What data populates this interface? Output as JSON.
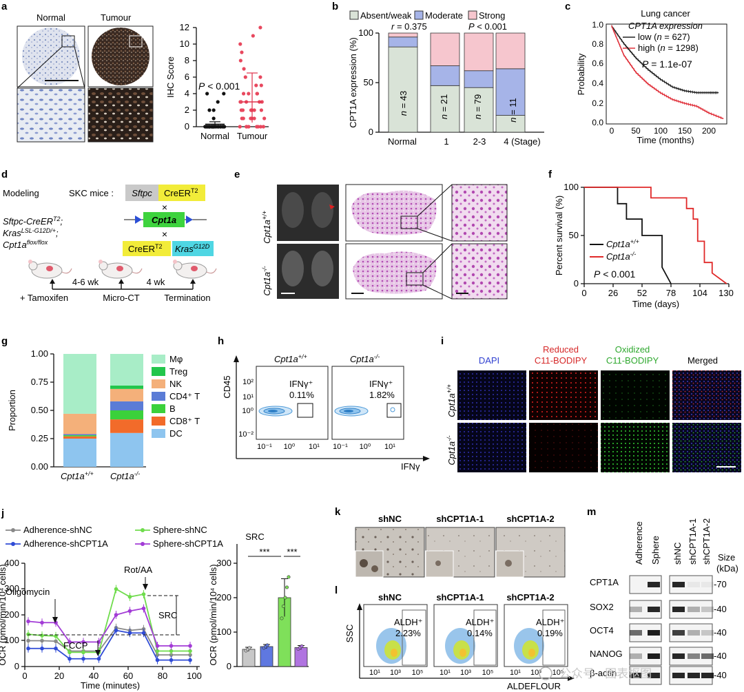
{
  "panels": {
    "a": {
      "letter": "a",
      "img_normal": "Normal",
      "img_tumour": "Tumour",
      "ylabel": "IHC Score",
      "p": "P < 0.001",
      "cats": [
        "Normal",
        "Tumour"
      ],
      "yticks": [
        "0",
        "2",
        "4",
        "6",
        "8",
        "10",
        "12"
      ]
    },
    "b": {
      "letter": "b",
      "legend": [
        "Absent/weak",
        "Moderate",
        "Strong"
      ],
      "ylabel": "CPT1A expression (%)",
      "r": "r = 0.375",
      "p": "P < 0.001",
      "cats": [
        "Normal",
        "1",
        "2-3",
        "4 (Stage)"
      ],
      "n": [
        "n = 43",
        "n = 21",
        "n = 79",
        "n = 11"
      ],
      "yticks": [
        "0",
        "50",
        "100"
      ]
    },
    "c": {
      "letter": "c",
      "title": "Lung cancer",
      "subtitle": "CPT1A expression",
      "low": "low (n = 627)",
      "high": "high (n = 1298)",
      "p": "P = 1.1e-07",
      "ylabel": "Probability",
      "xlabel": "Time (months)",
      "yticks": [
        "0.0",
        "0.2",
        "0.4",
        "0.6",
        "0.8",
        "1.0"
      ],
      "xticks": [
        "0",
        "50",
        "100",
        "150",
        "200"
      ]
    },
    "d": {
      "letter": "d",
      "modeling": "Modeling",
      "skc": "SKC mice :",
      "sftpc": "Sftpc",
      "creer": "CreER",
      "t2": "T2",
      "cpt1a": "Cpt1a",
      "kras": "Kras",
      "g12d": "G12D",
      "geno1": "Sftpc-CreER",
      "geno1sup": "T2",
      "geno2": "Kras",
      "geno2sup": "LSL-G12D/+",
      "geno3": "Cpt1a",
      "geno3sup": "flox/flox",
      "wk1": "4-6 wk",
      "wk2": "4 wk",
      "step1": "+ Tamoxifen",
      "step2": "Micro-CT",
      "step3": "Termination"
    },
    "e": {
      "letter": "e",
      "row1": "Cpt1a",
      "row1sup": "+/+",
      "row2": "Cpt1a",
      "row2sup": "-/-"
    },
    "f": {
      "letter": "f",
      "ylabel": "Percent survival (%)",
      "xlabel": "Time (days)",
      "wt": "Cpt1a",
      "wtsup": "+/+",
      "ko": "Cpt1a",
      "kosup": "-/-",
      "p": "P < 0.001",
      "yticks": [
        "0",
        "50",
        "100"
      ],
      "xticks": [
        "0",
        "26",
        "52",
        "78",
        "104",
        "130"
      ]
    },
    "g": {
      "letter": "g",
      "ylabel": "Proportion",
      "cats": [
        "Cpt1a",
        "Cpt1a"
      ],
      "catsup": [
        "+/+",
        "-/-"
      ],
      "yticks": [
        "0.00",
        "0.25",
        "0.50",
        "0.75",
        "1.00"
      ],
      "legend": [
        "Mφ",
        "Treg",
        "NK",
        "CD4⁺ T",
        "B",
        "CD8⁺ T",
        "DC"
      ]
    },
    "h": {
      "letter": "h",
      "ylabel": "CD45",
      "xlabel": "IFNγ",
      "wt": "Cpt1a",
      "wtsup": "+/+",
      "ko": "Cpt1a",
      "kosup": "-/-",
      "gate": "IFNγ⁺",
      "v1": "0.11%",
      "v2": "1.82%",
      "yticks": [
        "10²",
        "10¹",
        "10⁰",
        "10⁻²"
      ],
      "xticks": [
        "10⁻¹",
        "10⁰",
        "10¹"
      ]
    },
    "i": {
      "letter": "i",
      "cols": [
        "DAPI",
        "Reduced",
        "Oxidized",
        "Merged"
      ],
      "cols2": [
        "",
        "C11-BODIPY",
        "C11-BODIPY",
        ""
      ],
      "row1": "Cpt1a",
      "row1sup": "+/+",
      "row2": "Cpt1a",
      "row2sup": "-/-"
    },
    "j": {
      "letter": "j",
      "legend": [
        "Adherence-shNC",
        "Sphere-shNC",
        "Adherence-shCPT1A",
        "Sphere-shCPT1A"
      ],
      "ylabel": "OCR (pmol/min/10⁴ cells)",
      "xlabel": "Time (minutes)",
      "oligo": "Oligomycin",
      "fccp": "FCCP",
      "rot": "Rot/AA",
      "src": "SRC",
      "bar_title": "SRC",
      "bar_ylabel": "OCR (pmol/min/10⁴ cells)",
      "stars": "***",
      "yticks": [
        "0",
        "100",
        "200",
        "300",
        "400"
      ],
      "xticks": [
        "0",
        "20",
        "40",
        "60",
        "80",
        "100"
      ],
      "bar_yticks": [
        "0",
        "100",
        "200",
        "300"
      ]
    },
    "k": {
      "letter": "k",
      "cols": [
        "shNC",
        "shCPT1A-1",
        "shCPT1A-2"
      ]
    },
    "l": {
      "letter": "l",
      "cols": [
        "shNC",
        "shCPT1A-1",
        "shCPT1A-2"
      ],
      "gate": "ALDH⁺",
      "vals": [
        "2.23%",
        "0.14%",
        "0.19%"
      ],
      "ylabel": "SSC",
      "xlabel": "ALDEFLOUR",
      "xticks": [
        "10¹",
        "10³",
        "10⁵"
      ]
    },
    "m": {
      "letter": "m",
      "lanes": [
        "Adherence",
        "Sphere",
        "shNC",
        "shCPT1A-1",
        "shCPT1A-2"
      ],
      "size": "Size",
      "kda": "(kDa)",
      "proteins": [
        "CPT1A",
        "SOX2",
        "OCT4",
        "NANOG",
        "β-actin"
      ],
      "markers": [
        "-70",
        "-40",
        "-40",
        "-40",
        "-40"
      ]
    }
  },
  "watermark": "公众号 · 图表抠图",
  "chart_data": [
    {
      "type": "scatter",
      "panel": "a",
      "ylabel": "IHC Score",
      "categories": [
        "Normal",
        "Tumour"
      ],
      "means": [
        0.3,
        3.0
      ],
      "ylim": [
        0,
        12
      ]
    },
    {
      "type": "bar",
      "panel": "b",
      "ylabel": "CPT1A expression (%)",
      "categories": [
        "Normal",
        "1",
        "2-3",
        "4 (Stage)"
      ],
      "series": [
        {
          "name": "Absent/weak",
          "values": [
            86,
            47,
            45,
            17
          ]
        },
        {
          "name": "Moderate",
          "values": [
            10,
            20,
            17,
            47
          ]
        },
        {
          "name": "Strong",
          "values": [
            4,
            33,
            38,
            36
          ]
        }
      ],
      "ylim": [
        0,
        100
      ]
    },
    {
      "type": "line",
      "panel": "c",
      "xlabel": "Time (months)",
      "ylabel": "Probability",
      "series": [
        {
          "name": "low (n = 627)",
          "x": [
            0,
            25,
            50,
            75,
            100,
            125,
            150,
            175,
            200,
            220
          ],
          "y": [
            1.0,
            0.82,
            0.67,
            0.55,
            0.45,
            0.37,
            0.33,
            0.31,
            0.31,
            0.31
          ]
        },
        {
          "name": "high (n = 1298)",
          "x": [
            0,
            25,
            50,
            75,
            100,
            125,
            150,
            175,
            200,
            230
          ],
          "y": [
            1.0,
            0.7,
            0.52,
            0.4,
            0.31,
            0.24,
            0.2,
            0.17,
            0.1,
            0.04
          ]
        }
      ],
      "ylim": [
        0,
        1
      ],
      "xlim": [
        0,
        240
      ]
    },
    {
      "type": "line",
      "panel": "f",
      "xlabel": "Time (days)",
      "ylabel": "Percent survival (%)",
      "series": [
        {
          "name": "Cpt1a+/+",
          "x": [
            0,
            30,
            30,
            38,
            38,
            52,
            52,
            70,
            70,
            78
          ],
          "y": [
            100,
            100,
            83,
            83,
            67,
            67,
            50,
            50,
            17,
            0
          ]
        },
        {
          "name": "Cpt1a-/-",
          "x": [
            0,
            60,
            60,
            92,
            92,
            98,
            98,
            102,
            102,
            108,
            108,
            115,
            115,
            128
          ],
          "y": [
            100,
            100,
            89,
            89,
            78,
            78,
            67,
            67,
            44,
            44,
            22,
            22,
            11,
            0
          ]
        }
      ],
      "ylim": [
        0,
        100
      ],
      "xlim": [
        0,
        130
      ]
    },
    {
      "type": "bar",
      "panel": "g",
      "ylabel": "Proportion",
      "categories": [
        "Cpt1a+/+",
        "Cpt1a-/-"
      ],
      "series": [
        {
          "name": "DC",
          "values": [
            0.25,
            0.3
          ]
        },
        {
          "name": "CD8⁺ T",
          "values": [
            0.02,
            0.12
          ]
        },
        {
          "name": "B",
          "values": [
            0.01,
            0.08
          ]
        },
        {
          "name": "CD4⁺ T",
          "values": [
            0.01,
            0.08
          ]
        },
        {
          "name": "NK",
          "values": [
            0.18,
            0.11
          ]
        },
        {
          "name": "Treg",
          "values": [
            0.0,
            0.03
          ]
        },
        {
          "name": "Mφ",
          "values": [
            0.53,
            0.28
          ]
        }
      ],
      "ylim": [
        0,
        1
      ]
    },
    {
      "type": "line",
      "panel": "j",
      "xlabel": "Time (minutes)",
      "ylabel": "OCR (pmol/min/10⁴ cells)",
      "x": [
        2,
        10,
        18,
        26,
        34,
        43,
        53,
        61,
        69,
        77,
        85,
        96
      ],
      "series": [
        {
          "name": "Adherence-shNC",
          "values": [
            100,
            100,
            98,
            60,
            60,
            60,
            150,
            140,
            145,
            45,
            45,
            45
          ]
        },
        {
          "name": "Sphere-shNC",
          "values": [
            125,
            120,
            118,
            55,
            55,
            55,
            300,
            270,
            280,
            60,
            60,
            60
          ]
        },
        {
          "name": "Adherence-shCPT1A",
          "values": [
            70,
            70,
            70,
            30,
            30,
            30,
            140,
            130,
            130,
            25,
            25,
            25
          ]
        },
        {
          "name": "Sphere-shCPT1A",
          "values": [
            175,
            170,
            170,
            95,
            95,
            95,
            200,
            215,
            225,
            80,
            80,
            80
          ]
        }
      ],
      "ylim": [
        0,
        400
      ],
      "xlim": [
        0,
        100
      ]
    },
    {
      "type": "bar",
      "panel": "j",
      "title": "SRC",
      "ylabel": "OCR (pmol/min/10⁴ cells)",
      "categories": [
        "Adherence-shNC",
        "Adherence-shCPT1A",
        "Sphere-shNC",
        "Sphere-shCPT1A"
      ],
      "values": [
        50,
        58,
        200,
        55
      ],
      "ylim": [
        0,
        300
      ]
    }
  ]
}
